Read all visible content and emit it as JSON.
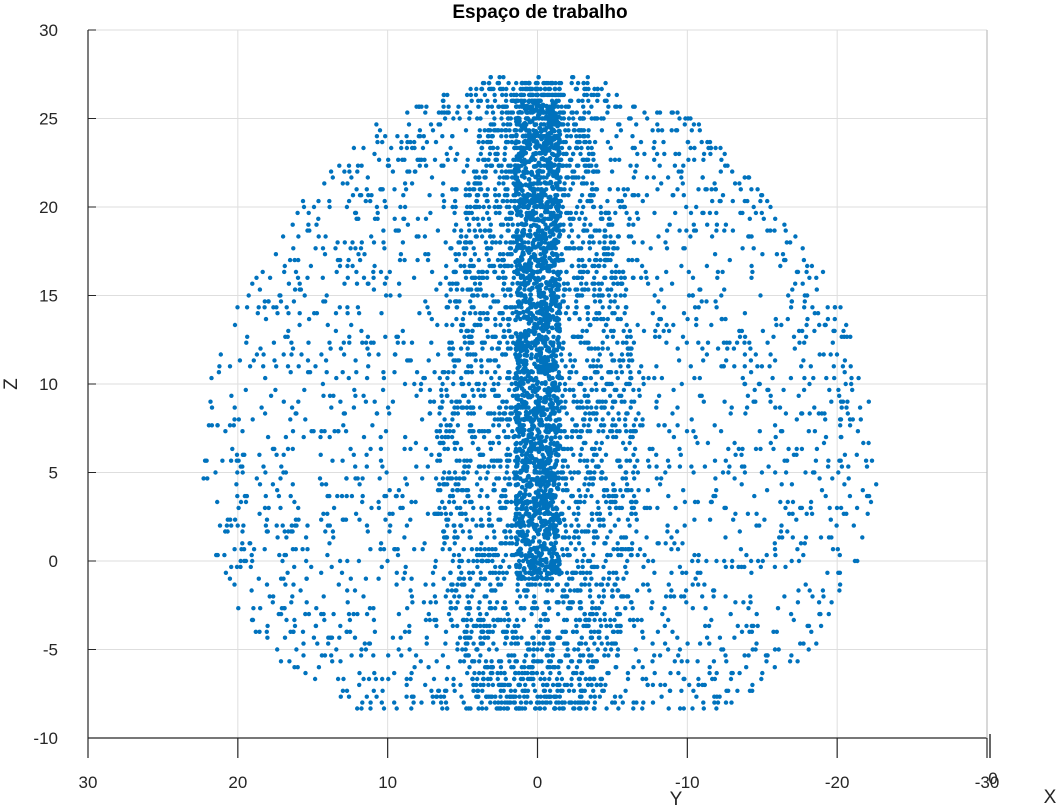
{
  "chart_data": {
    "type": "scatter",
    "title": "Espaço de trabalho",
    "xlabel": "X",
    "ylabel": "Y",
    "zlabel": "Z",
    "view": "side (Y horizontal reversed, Z vertical)",
    "horizontal_axis_lim": [
      -30,
      30
    ],
    "horizontal_axis_reversed": true,
    "zlim": [
      -10,
      30
    ],
    "horizontal_ticks": [
      "30",
      "20",
      "10",
      "0",
      "-10",
      "-20",
      "-30"
    ],
    "z_ticks": [
      "-10",
      "-5",
      "0",
      "5",
      "10",
      "15",
      "20",
      "25",
      "30"
    ],
    "x_axis_tick": "0",
    "grid": true,
    "marker_color": "#0072BD",
    "series": [
      {
        "description_values": "Dense point cloud of the robot workspace; approximate shape",
        "z_min": -8.5,
        "z_max": 27.2,
        "y_extent_at_z": [
          {
            "z": -8,
            "y_min": -13,
            "y_max": 13
          },
          {
            "z": -5,
            "y_min": -18.5,
            "y_max": 18.5
          },
          {
            "z": 0,
            "y_min": -21.5,
            "y_max": 21.5
          },
          {
            "z": 5,
            "y_min": -22.8,
            "y_max": 22.8
          },
          {
            "z": 10,
            "y_min": -22,
            "y_max": 22
          },
          {
            "z": 15,
            "y_min": -20,
            "y_max": 20
          },
          {
            "z": 20,
            "y_min": -16,
            "y_max": 16
          },
          {
            "z": 25,
            "y_min": -10.5,
            "y_max": 10.5
          },
          {
            "z": 27.2,
            "y_min": -3.5,
            "y_max": 3.5
          }
        ]
      }
    ]
  }
}
